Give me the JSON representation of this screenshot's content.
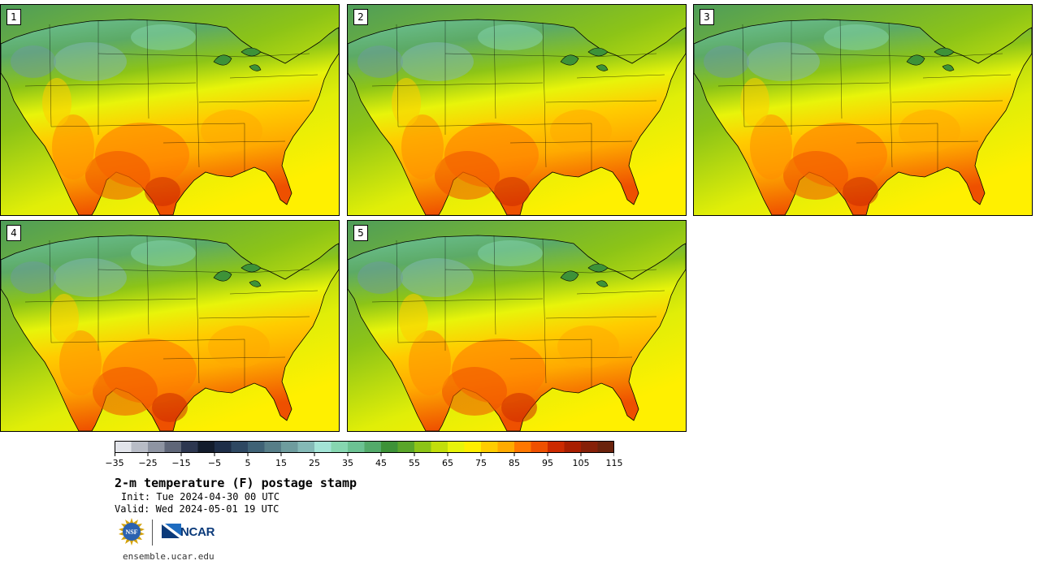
{
  "panels": [
    {
      "label": "1"
    },
    {
      "label": "2"
    },
    {
      "label": "3"
    },
    {
      "label": "4"
    },
    {
      "label": "5"
    }
  ],
  "colorbar": {
    "colors": [
      "#e2e4ea",
      "#b8bcc6",
      "#8e94a2",
      "#5f6678",
      "#2d3750",
      "#131c2c",
      "#1e2e48",
      "#2e4862",
      "#3f6276",
      "#577e88",
      "#6e9c9e",
      "#84b9b6",
      "#a3e4d6",
      "#86d6b0",
      "#6cc293",
      "#53aa6a",
      "#3d9238",
      "#5aa62a",
      "#8cc417",
      "#c2de0b",
      "#e8f40a",
      "#ffee00",
      "#ffcc00",
      "#ffaa00",
      "#ff7700",
      "#ee5000",
      "#cc2a00",
      "#a81e00",
      "#862008",
      "#6a220c"
    ],
    "ticks": [
      "−35",
      "−25",
      "−15",
      "−5",
      "5",
      "15",
      "25",
      "35",
      "45",
      "55",
      "65",
      "75",
      "85",
      "95",
      "105",
      "115"
    ]
  },
  "title": "2-m temperature (F) postage stamp",
  "init": "Init: Tue 2024-04-30 00 UTC",
  "valid": "Valid: Wed 2024-05-01 19 UTC",
  "logos": {
    "nsf": "NSF",
    "ncar": "NCAR"
  },
  "website": "ensemble.ucar.edu"
}
